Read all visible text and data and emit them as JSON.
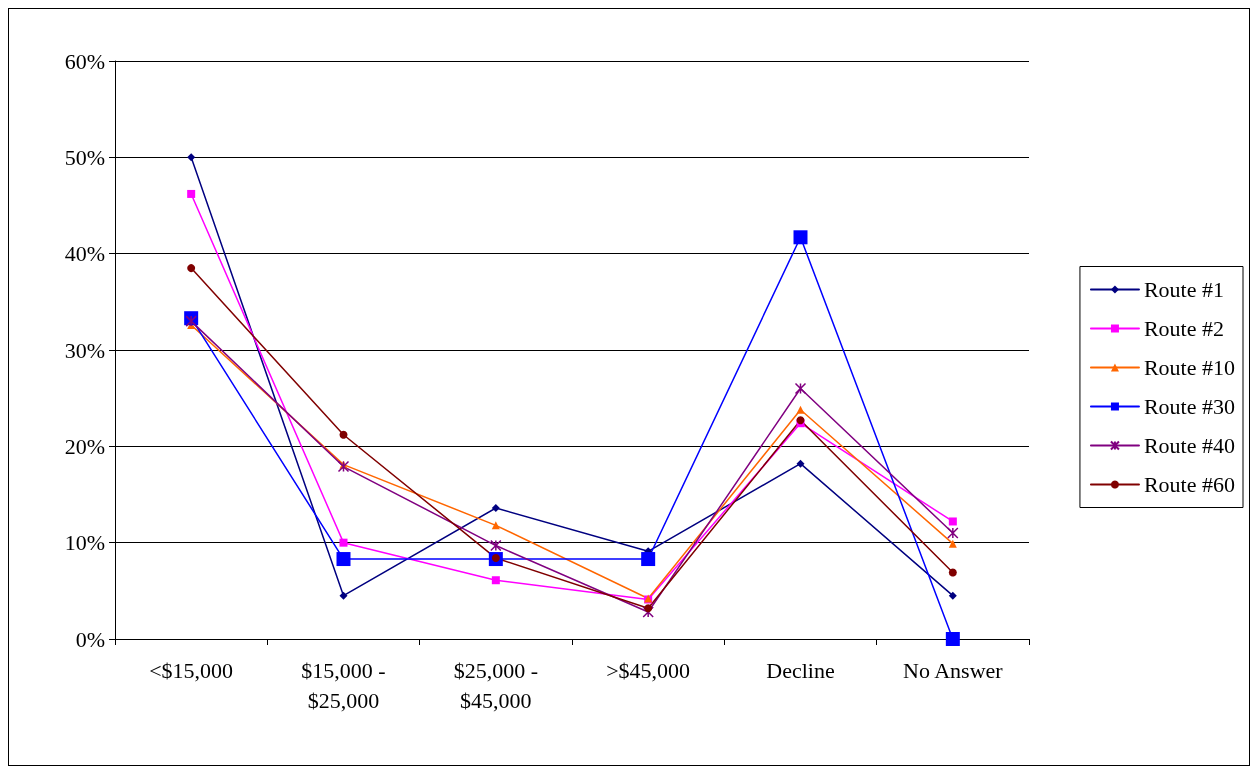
{
  "chart_data": {
    "type": "line",
    "categories": [
      "<$15,000",
      "$15,000 - $25,000",
      "$25,000 - $45,000",
      ">$45,000",
      "Decline",
      "No Answer"
    ],
    "series": [
      {
        "name": "Route #1",
        "color": "#000080",
        "marker": "diamond",
        "values": [
          50,
          4.5,
          13.6,
          9.1,
          18.2,
          4.5
        ]
      },
      {
        "name": "Route #2",
        "color": "#ff00ff",
        "marker": "square",
        "values": [
          46.2,
          10,
          6.1,
          4.1,
          22.4,
          12.2
        ]
      },
      {
        "name": "Route #10",
        "color": "#ff6600",
        "marker": "triangle",
        "values": [
          32.6,
          18.1,
          11.8,
          4.2,
          23.8,
          9.9
        ]
      },
      {
        "name": "Route #30",
        "color": "#0000ff",
        "marker": "square",
        "values": [
          33.3,
          8.3,
          8.3,
          8.3,
          41.7,
          0
        ]
      },
      {
        "name": "Route #40",
        "color": "#800080",
        "marker": "cross",
        "values": [
          33,
          17.9,
          9.7,
          2.8,
          26,
          11
        ]
      },
      {
        "name": "Route #60",
        "color": "#800000",
        "marker": "circle",
        "values": [
          38.5,
          21.2,
          8.4,
          3.2,
          22.7,
          6.9
        ]
      }
    ],
    "ylim": [
      0,
      60
    ],
    "yticks": [
      {
        "value": 0,
        "label": "0%"
      },
      {
        "value": 10,
        "label": "10%"
      },
      {
        "value": 20,
        "label": "20%"
      },
      {
        "value": 30,
        "label": "30%"
      },
      {
        "value": 40,
        "label": "40%"
      },
      {
        "value": 50,
        "label": "50%"
      },
      {
        "value": 60,
        "label": "60%"
      }
    ],
    "grid": "y",
    "legend": "right",
    "line_style": "solid"
  }
}
